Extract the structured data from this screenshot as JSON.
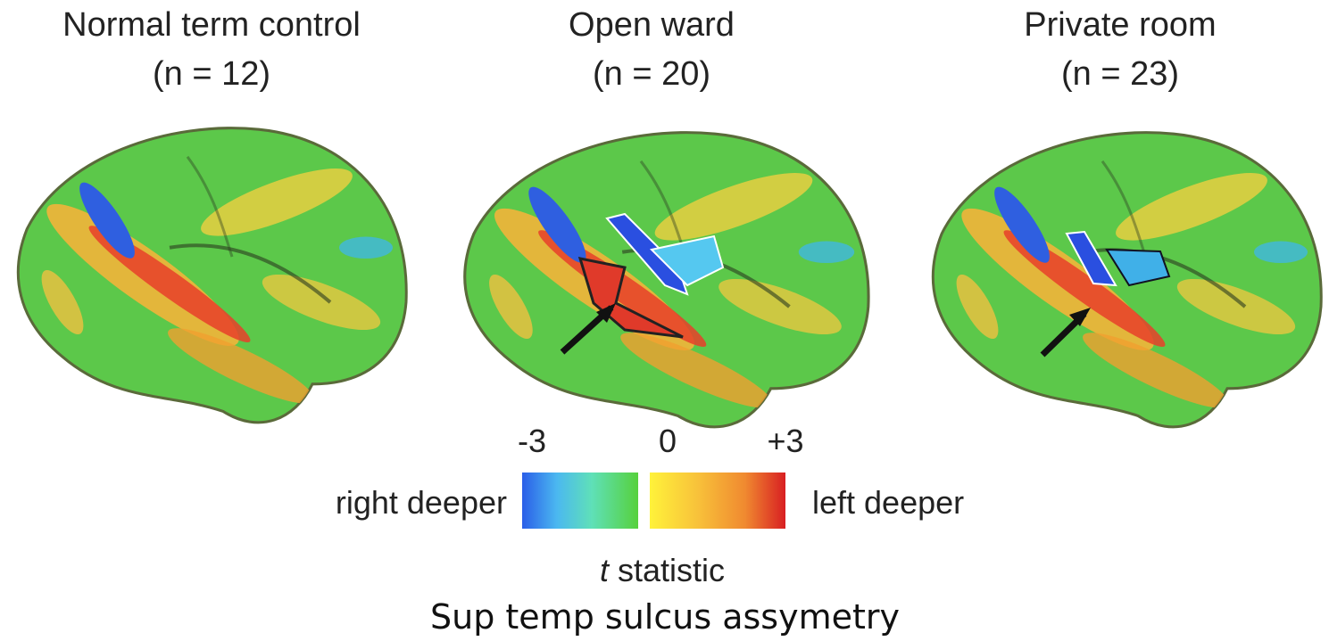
{
  "panels": [
    {
      "title": "Normal term control",
      "n": "(n = 12)"
    },
    {
      "title": "Open ward",
      "n": "(n = 20)"
    },
    {
      "title": "Private room",
      "n": "(n = 23)"
    }
  ],
  "colorbar": {
    "ticks": [
      "-3",
      "0",
      "+3"
    ],
    "left_label": "right deeper",
    "right_label": "left deeper",
    "label_variable": "t",
    "label_text": "statistic"
  },
  "caption": "Sup temp sulcus assymetry"
}
